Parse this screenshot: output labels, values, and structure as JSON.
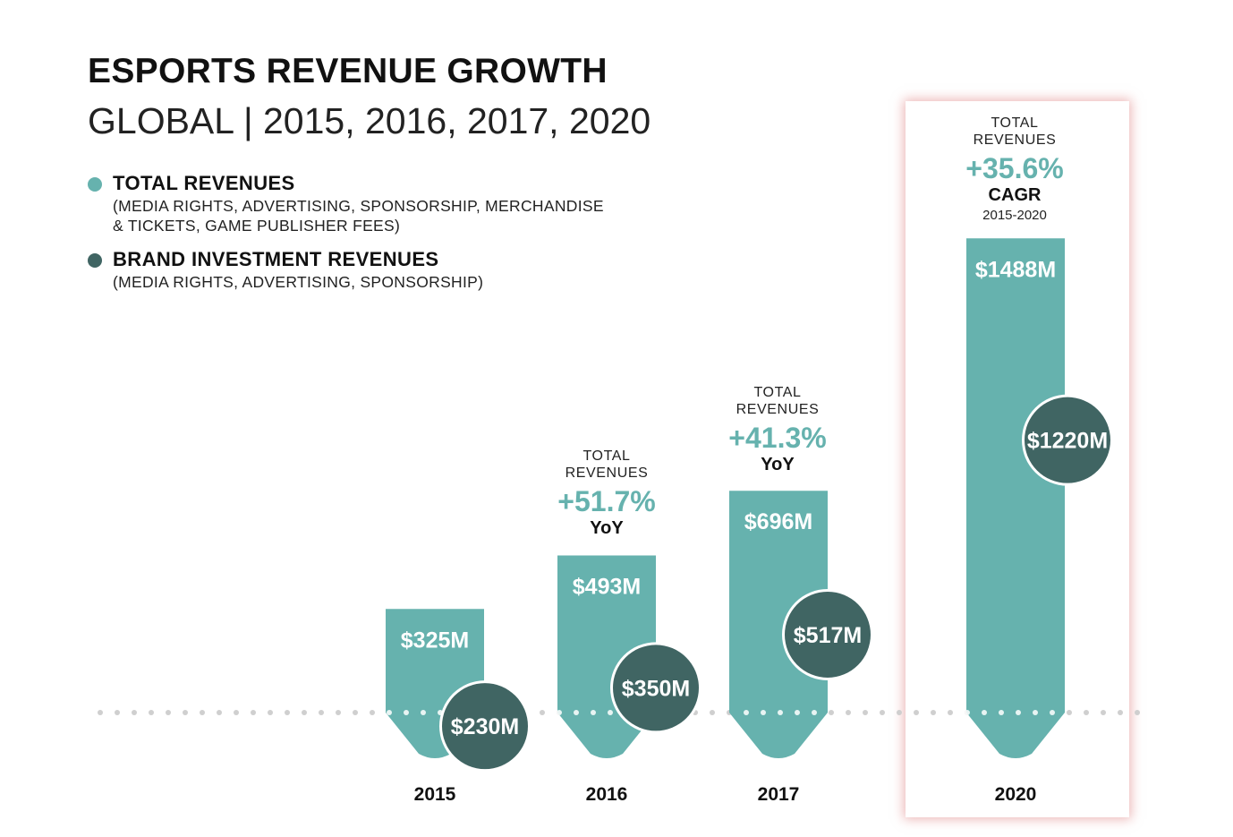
{
  "header": {
    "title": "ESPORTS REVENUE GROWTH",
    "subtitle": "GLOBAL | 2015, 2016, 2017, 2020"
  },
  "legend": [
    {
      "label": "TOTAL REVENUES",
      "desc": "(MEDIA RIGHTS, ADVERTISING, SPONSORSHIP, MERCHANDISE & TICKETS, GAME PUBLISHER FEES)",
      "color": "#66b2ae"
    },
    {
      "label": "BRAND INVESTMENT REVENUES",
      "desc": "(MEDIA RIGHTS, ADVERTISING, SPONSORSHIP)",
      "color": "#406563"
    }
  ],
  "annotations": {
    "y2016": {
      "caption_line1": "TOTAL",
      "caption_line2": "REVENUES",
      "growth": "+51.7%",
      "kind": "YoY"
    },
    "y2017": {
      "caption_line1": "TOTAL",
      "caption_line2": "REVENUES",
      "growth": "+41.3%",
      "kind": "YoY"
    },
    "y2020": {
      "caption_line1": "TOTAL",
      "caption_line2": "REVENUES",
      "growth": "+35.6%",
      "kind": "CAGR",
      "range": "2015-2020"
    }
  },
  "chart_data": {
    "type": "bar",
    "categories": [
      "2015",
      "2016",
      "2017",
      "2020"
    ],
    "series": [
      {
        "name": "TOTAL REVENUES",
        "values": [
          325,
          493,
          696,
          1488
        ],
        "labels": [
          "$325M",
          "$493M",
          "$696M",
          "$1488M"
        ],
        "color": "#66b2ae"
      },
      {
        "name": "BRAND INVESTMENT REVENUES",
        "values": [
          230,
          350,
          517,
          1220
        ],
        "labels": [
          "$230M",
          "$350M",
          "$517M",
          "$1220M"
        ],
        "color": "#406563"
      }
    ],
    "highlighted_category": "2020",
    "colors": {
      "total": "#66b2ae",
      "brand": "#406563",
      "highlight_glow": "#e08a8a",
      "baseline_dots": "#cfcfcf"
    }
  }
}
